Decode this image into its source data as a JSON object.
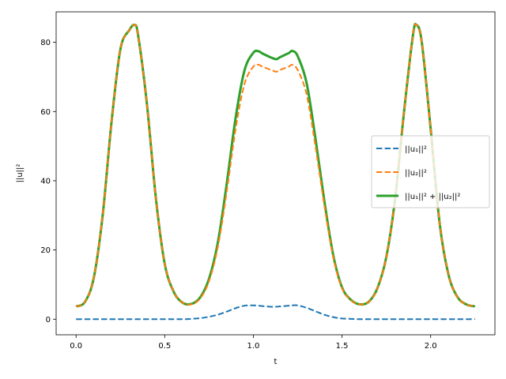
{
  "chart_data": {
    "type": "line",
    "xlabel": "t",
    "ylabel": "||u||²",
    "xlim": [
      -0.1125,
      2.3625
    ],
    "ylim": [
      -4.5,
      88.8
    ],
    "xticks": [
      0.0,
      0.5,
      1.0,
      1.5,
      2.0
    ],
    "xtick_labels": [
      "0.0",
      "0.5",
      "1.0",
      "1.5",
      "2.0"
    ],
    "yticks": [
      0,
      20,
      40,
      60,
      80
    ],
    "ytick_labels": [
      "0",
      "20",
      "40",
      "60",
      "80"
    ],
    "grid": false,
    "legend_position": "right",
    "x": [
      0.0,
      0.05,
      0.1,
      0.15,
      0.2,
      0.25,
      0.3,
      0.33,
      0.35,
      0.4,
      0.45,
      0.5,
      0.55,
      0.6,
      0.65,
      0.7,
      0.75,
      0.8,
      0.85,
      0.9,
      0.95,
      1.0,
      1.03,
      1.05,
      1.1,
      1.13,
      1.15,
      1.2,
      1.22,
      1.25,
      1.3,
      1.35,
      1.4,
      1.45,
      1.5,
      1.55,
      1.6,
      1.65,
      1.7,
      1.75,
      1.8,
      1.85,
      1.9,
      1.92,
      1.95,
      2.0,
      2.05,
      2.1,
      2.15,
      2.2,
      2.25
    ],
    "series": [
      {
        "name": "||u₁||²",
        "style": "dashed",
        "color": "#1f77b4",
        "values": [
          0,
          0,
          0,
          0,
          0,
          0,
          0,
          0,
          0,
          0,
          0,
          0,
          0,
          0,
          0.1,
          0.3,
          0.7,
          1.3,
          2.2,
          3.2,
          3.9,
          4.0,
          3.9,
          3.8,
          3.6,
          3.6,
          3.7,
          3.9,
          4.0,
          4.0,
          3.3,
          2.3,
          1.3,
          0.6,
          0.2,
          0.1,
          0,
          0,
          0,
          0,
          0,
          0,
          0,
          0,
          0,
          0,
          0,
          0,
          0,
          0,
          0
        ]
      },
      {
        "name": "||u₂||²",
        "style": "dashed",
        "color": "#ff7f0e",
        "values": [
          3.7,
          5.0,
          12.0,
          30.0,
          57.0,
          78.0,
          83.5,
          85.0,
          82.0,
          62.0,
          35.0,
          16.0,
          8.0,
          4.8,
          4.3,
          6.0,
          11.0,
          21.0,
          37.0,
          55.0,
          68.0,
          73.0,
          73.5,
          73.0,
          72.0,
          71.5,
          72.0,
          73.0,
          73.5,
          72.0,
          65.0,
          50.0,
          33.0,
          18.0,
          9.0,
          5.5,
          4.3,
          5.0,
          9.0,
          18.0,
          35.0,
          60.0,
          82.0,
          85.0,
          80.0,
          55.0,
          28.0,
          13.0,
          6.5,
          4.3,
          3.7
        ]
      },
      {
        "name": "||u₁||² + ||u₂||²",
        "style": "solid",
        "color": "#2ca02c",
        "values": [
          3.7,
          5.0,
          12.0,
          30.0,
          57.0,
          78.0,
          83.5,
          85.0,
          82.0,
          62.0,
          35.0,
          16.0,
          8.0,
          4.8,
          4.4,
          6.3,
          11.7,
          22.3,
          39.2,
          58.2,
          71.9,
          77.0,
          77.4,
          76.8,
          75.6,
          75.1,
          75.7,
          76.9,
          77.5,
          76.0,
          68.3,
          52.3,
          34.3,
          18.6,
          9.2,
          5.6,
          4.3,
          5.0,
          9.0,
          18.0,
          35.0,
          60.0,
          82.0,
          85.0,
          80.0,
          55.0,
          28.0,
          13.0,
          6.5,
          4.3,
          3.7
        ]
      }
    ]
  }
}
